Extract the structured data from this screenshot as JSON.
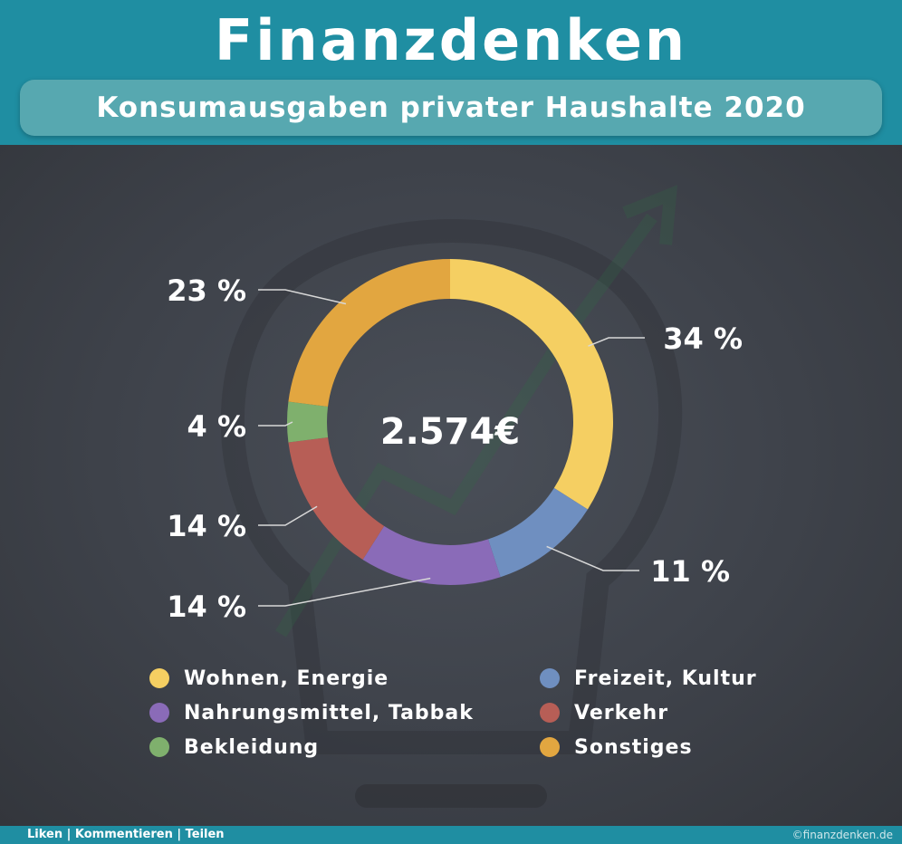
{
  "header": {
    "brand": "Finanzdenken",
    "subtitle": "Konsumausgaben privater Haushalte 2020"
  },
  "colors": {
    "header_bg": "#1f8ea2",
    "subtitle_bg": "#57a8b0",
    "board_bg": "#3e424a"
  },
  "chart_data": {
    "type": "pie",
    "donut": true,
    "center_label": "2.574€",
    "slices": [
      {
        "name": "Wohnen, Energie",
        "value": 34,
        "label": "34 %",
        "color": "#f5cf62"
      },
      {
        "name": "Freizeit, Kultur",
        "value": 11,
        "label": "11 %",
        "color": "#6f8fc0"
      },
      {
        "name": "Nahrungsmittel, Tabbak",
        "value": 14,
        "label": "14 %",
        "color": "#8a6bb8"
      },
      {
        "name": "Verkehr",
        "value": 14,
        "label": "14 %",
        "color": "#b75e56"
      },
      {
        "name": "Bekleidung",
        "value": 4,
        "label": "4 %",
        "color": "#7fb06d"
      },
      {
        "name": "Sonstiges",
        "value": 23,
        "label": "23 %",
        "color": "#e2a640"
      }
    ],
    "legend": [
      {
        "label": "Wohnen, Energie",
        "color": "#f5cf62"
      },
      {
        "label": "Nahrungsmittel, Tabbak",
        "color": "#8a6bb8"
      },
      {
        "label": "Bekleidung",
        "color": "#7fb06d"
      },
      {
        "label": "Freizeit, Kultur",
        "color": "#6f8fc0"
      },
      {
        "label": "Verkehr",
        "color": "#b75e56"
      },
      {
        "label": "Sonstiges",
        "color": "#e2a640"
      }
    ]
  },
  "footer": {
    "actions": "Liken | Kommentieren | Teilen",
    "copyright": "©finanzdenken.de"
  }
}
